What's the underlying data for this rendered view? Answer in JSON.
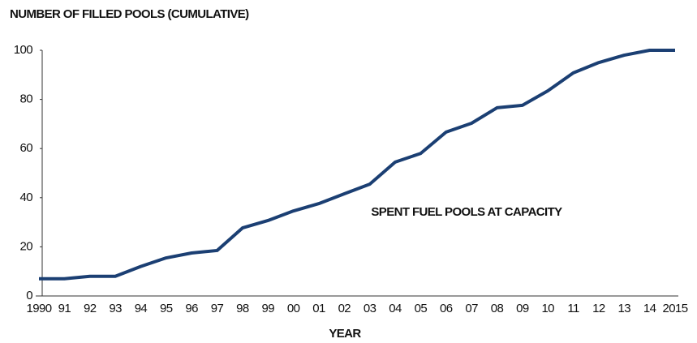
{
  "chart_data": {
    "type": "line",
    "title": "NUMBER OF FILLED POOLS (CUMULATIVE)",
    "x_label": "YEAR",
    "annotation": "SPENT FUEL POOLS AT CAPACITY",
    "categories": [
      "1990",
      "91",
      "92",
      "93",
      "94",
      "95",
      "96",
      "97",
      "98",
      "99",
      "00",
      "01",
      "02",
      "03",
      "04",
      "05",
      "06",
      "07",
      "08",
      "09",
      "10",
      "11",
      "12",
      "13",
      "14",
      "2015"
    ],
    "series": [
      {
        "name": "SPENT FUEL POOLS AT CAPACITY",
        "color": "#1b3f73",
        "values": [
          7,
          7,
          8,
          8,
          12,
          15.5,
          17.5,
          18.5,
          27.7,
          30.7,
          34.6,
          37.6,
          41.6,
          45.5,
          54.5,
          58,
          66.7,
          70.3,
          76.6,
          77.6,
          83.5,
          90.8,
          95,
          98,
          100,
          100
        ]
      }
    ],
    "ylim": [
      0,
      100
    ],
    "yticks": [
      0,
      20,
      40,
      60,
      80,
      100
    ],
    "grid": false
  }
}
